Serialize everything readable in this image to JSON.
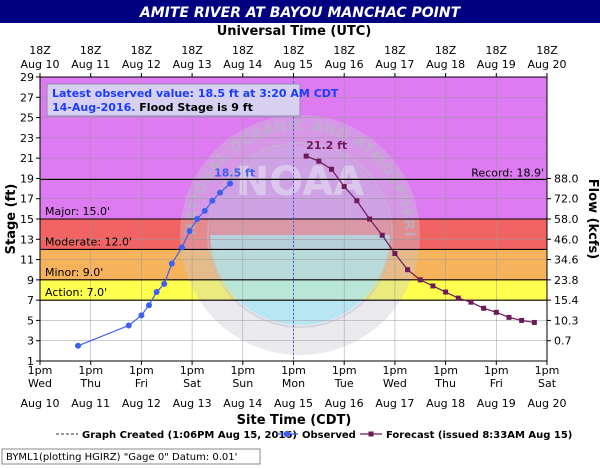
{
  "chart_data": {
    "type": "line",
    "title": "AMITE RIVER AT BAYOU MANCHAC POINT",
    "top_axis_title": "Universal Time (UTC)",
    "bottom_axis_title": "Site Time (CDT)",
    "ylabel": "Stage (ft)",
    "y2label": "Flow (kcfs)",
    "ylim": [
      1,
      29
    ],
    "yticks": [
      "1",
      "3",
      "5",
      "7",
      "9",
      "11",
      "13",
      "15",
      "17",
      "19",
      "21",
      "23",
      "25",
      "27",
      "29"
    ],
    "flow_ticks": [
      {
        "stage": 3,
        "label": "0.7"
      },
      {
        "stage": 5,
        "label": "10.3"
      },
      {
        "stage": 7,
        "label": "15.4"
      },
      {
        "stage": 9,
        "label": "23.8"
      },
      {
        "stage": 11,
        "label": "34.6"
      },
      {
        "stage": 13,
        "label": "46.0"
      },
      {
        "stage": 15,
        "label": "58.0"
      },
      {
        "stage": 17,
        "label": "72.0"
      },
      {
        "stage": 19,
        "label": "88.0"
      }
    ],
    "top_ticks": [
      [
        "18Z",
        "Aug 10"
      ],
      [
        "18Z",
        "Aug 11"
      ],
      [
        "18Z",
        "Aug 12"
      ],
      [
        "18Z",
        "Aug 13"
      ],
      [
        "18Z",
        "Aug 14"
      ],
      [
        "18Z",
        "Aug 15"
      ],
      [
        "18Z",
        "Aug 16"
      ],
      [
        "18Z",
        "Aug 17"
      ],
      [
        "18Z",
        "Aug 18"
      ],
      [
        "18Z",
        "Aug 19"
      ],
      [
        "18Z",
        "Aug 20"
      ]
    ],
    "bottom_ticks": [
      [
        "1pm",
        "Wed",
        "Aug 10"
      ],
      [
        "1pm",
        "Thu",
        "Aug 11"
      ],
      [
        "1pm",
        "Fri",
        "Aug 12"
      ],
      [
        "1pm",
        "Sat",
        "Aug 13"
      ],
      [
        "1pm",
        "Sun",
        "Aug 14"
      ],
      [
        "1pm",
        "Mon",
        "Aug 15"
      ],
      [
        "1pm",
        "Tue",
        "Aug 16"
      ],
      [
        "1pm",
        "Wed",
        "Aug 17"
      ],
      [
        "1pm",
        "Thu",
        "Aug 18"
      ],
      [
        "1pm",
        "Fri",
        "Aug 19"
      ],
      [
        "1pm",
        "Sat",
        "Aug 20"
      ]
    ],
    "flood_bands": [
      {
        "name": "Action",
        "label": "Action: 7.0'",
        "from": 1,
        "to": 7,
        "color": "#ffffff"
      },
      {
        "name": "Minor",
        "label": "Minor: 9.0'",
        "from": 7,
        "to": 9,
        "color": "#ffff4d"
      },
      {
        "name": "Moderate",
        "label": "Moderate: 12.0'",
        "from": 9,
        "to": 12,
        "color": "#f7b35c"
      },
      {
        "name": "Major",
        "label": "Major: 15.0'",
        "from": 12,
        "to": 15,
        "color": "#f26464"
      },
      {
        "name": "Record",
        "label": "",
        "from": 15,
        "to": 29,
        "color": "#de7af2"
      }
    ],
    "band_labels": [
      {
        "text": "Action: 7.0'",
        "stage": 7
      },
      {
        "text": "Minor: 9.0'",
        "stage": 9
      },
      {
        "text": "Moderate: 12.0'",
        "stage": 12
      },
      {
        "text": "Major: 15.0'",
        "stage": 15
      }
    ],
    "record_label": "Record: 18.9'",
    "record_stage": 18.9,
    "info_box": {
      "line1": "Latest observed value: 18.5 ft at 3:20 AM CDT",
      "line2_date": "14-Aug-2016.",
      "line2_rest": " Flood Stage is 9 ft"
    },
    "series": [
      {
        "name": "Observed",
        "color": "#3f5ff0",
        "x": [
          0.75,
          1.75,
          2.0,
          2.15,
          2.3,
          2.45,
          2.6,
          2.8,
          2.95,
          3.1,
          3.25,
          3.4,
          3.55,
          3.75
        ],
        "y": [
          2.5,
          4.5,
          5.5,
          6.5,
          7.8,
          8.6,
          10.6,
          12.2,
          13.8,
          15.0,
          15.8,
          16.8,
          17.6,
          18.5
        ],
        "peak_label": "18.5 ft"
      },
      {
        "name": "Forecast",
        "color": "#6d1a5a",
        "x": [
          5.25,
          5.5,
          5.75,
          6.0,
          6.25,
          6.5,
          6.75,
          7.0,
          7.25,
          7.5,
          7.75,
          8.0,
          8.25,
          8.5,
          8.75,
          9.0,
          9.25,
          9.5,
          9.75
        ],
        "y": [
          21.2,
          20.7,
          19.9,
          18.2,
          16.8,
          15.0,
          13.4,
          11.6,
          10.0,
          9.0,
          8.4,
          7.8,
          7.2,
          6.8,
          6.2,
          5.8,
          5.3,
          5.0,
          4.8
        ],
        "peak_label": "21.2 ft"
      }
    ],
    "created_x": 5.0,
    "legend": {
      "created": "Graph Created (1:06PM Aug 15, 2016)",
      "observed": "Observed",
      "forecast": "Forecast (issued 8:33AM Aug 15)"
    },
    "footer_note": "BYML1(plotting HGIRZ) \"Gage 0\" Datum: 0.01'",
    "watermark_text": "NATIONAL OCEANIC AND ATMOSPHERIC ADMINISTRATION · U.S. DEPARTMENT OF COMMERCE",
    "watermark_center": "NOAA",
    "colors": {
      "title_bg": "#000080",
      "title_text": "#ffffff",
      "observed": "#3f5ff0",
      "forecast": "#6d1a5a",
      "info_text": "#1a3cff"
    }
  }
}
